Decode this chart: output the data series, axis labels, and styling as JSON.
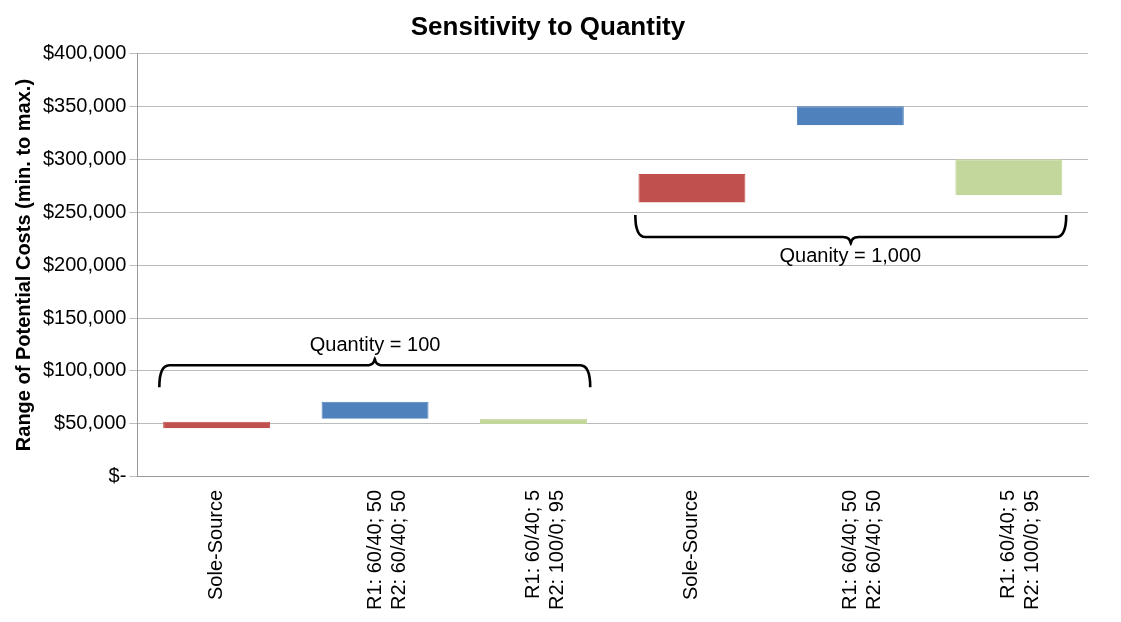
{
  "chart_data": {
    "type": "bar",
    "title": "Sensitivity to Quantity",
    "ylabel": "Range of Potential Costs (min. to max.)",
    "categories": [
      "Sole-Source",
      "R1: 60/40; 50\nR2: 60/40; 50",
      "R1: 60/40; 5\nR2: 100/0; 95",
      "Sole-Source",
      "R1: 60/40; 50\nR2: 60/40; 50",
      "R1: 60/40; 5\nR2: 100/0; 95"
    ],
    "base": [
      46000,
      55000,
      50000,
      259000,
      332000,
      266000
    ],
    "values": [
      6000,
      16000,
      5000,
      27000,
      18000,
      34000
    ],
    "colors": [
      "#c0504d",
      "#4f81bd",
      "#c3d69b",
      "#c0504d",
      "#4f81bd",
      "#c3d69b"
    ],
    "ylim": [
      0,
      400000
    ],
    "yticks": [
      {
        "value": 0,
        "label": "$-"
      },
      {
        "value": 50000,
        "label": "$50,000"
      },
      {
        "value": 100000,
        "label": "$100,000"
      },
      {
        "value": 150000,
        "label": "$150,000"
      },
      {
        "value": 200000,
        "label": "$200,000"
      },
      {
        "value": 250000,
        "label": "$250,000"
      },
      {
        "value": 300000,
        "label": "$300,000"
      },
      {
        "value": 350000,
        "label": "$350,000"
      },
      {
        "value": 400000,
        "label": "$400,000"
      }
    ],
    "grid": "y",
    "legend": false,
    "annotations": [
      "Quantity = 100",
      "Quanity = 1,000"
    ]
  }
}
